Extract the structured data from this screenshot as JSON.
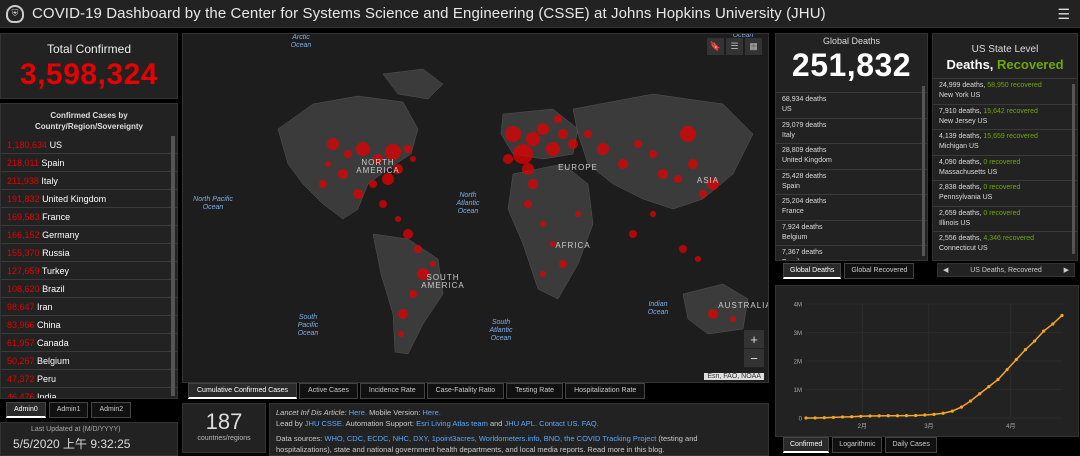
{
  "header": {
    "title": "COVID-19 Dashboard by the Center for Systems Science and Engineering (CSSE) at Johns Hopkins University (JHU)",
    "menu_icon": "hamburger-icon"
  },
  "total": {
    "label": "Total Confirmed",
    "value": "3,598,324"
  },
  "countries": {
    "heading": "Confirmed Cases by Country/Region/Sovereignty",
    "rows": [
      {
        "value": "1,180,634",
        "name": "US"
      },
      {
        "value": "218,011",
        "name": "Spain"
      },
      {
        "value": "211,938",
        "name": "Italy"
      },
      {
        "value": "191,832",
        "name": "United Kingdom"
      },
      {
        "value": "169,583",
        "name": "France"
      },
      {
        "value": "166,152",
        "name": "Germany"
      },
      {
        "value": "155,370",
        "name": "Russia"
      },
      {
        "value": "127,659",
        "name": "Turkey"
      },
      {
        "value": "108,620",
        "name": "Brazil"
      },
      {
        "value": "98,647",
        "name": "Iran"
      },
      {
        "value": "83,966",
        "name": "China"
      },
      {
        "value": "61,957",
        "name": "Canada"
      },
      {
        "value": "50,267",
        "name": "Belgium"
      },
      {
        "value": "47,372",
        "name": "Peru"
      },
      {
        "value": "46,476",
        "name": "India"
      }
    ]
  },
  "admin_tabs": [
    "Admin0",
    "Admin1",
    "Admin2"
  ],
  "last_updated": {
    "label": "Last Updated at (M/D/YYYY)",
    "value": "5/5/2020 上午 9:32:25"
  },
  "map": {
    "labels": [
      {
        "text": "Arctic Ocean",
        "kind": "ocean"
      },
      {
        "text": "NORTH AMERICA",
        "kind": "continent"
      },
      {
        "text": "North Pacific Ocean",
        "kind": "ocean"
      },
      {
        "text": "North Atlantic Ocean",
        "kind": "ocean"
      },
      {
        "text": "EUROPE",
        "kind": "continent"
      },
      {
        "text": "ASIA",
        "kind": "continent"
      },
      {
        "text": "AFRICA",
        "kind": "continent"
      },
      {
        "text": "SOUTH AMERICA",
        "kind": "continent"
      },
      {
        "text": "South Pacific Ocean",
        "kind": "ocean"
      },
      {
        "text": "South Atlantic Ocean",
        "kind": "ocean"
      },
      {
        "text": "Indian Ocean",
        "kind": "ocean"
      },
      {
        "text": "AUSTRALIA",
        "kind": "continent"
      },
      {
        "text": "Ocean",
        "kind": "ocean"
      }
    ],
    "attribution": "Esri, FAO, NOAA",
    "tools": [
      "bookmark-icon",
      "list-icon",
      "grid-icon"
    ]
  },
  "map_tabs": [
    "Cumulative Confirmed Cases",
    "Active Cases",
    "Incidence Rate",
    "Case-Fatality Ratio",
    "Testing Rate",
    "Hospitalization Rate"
  ],
  "countries_count": {
    "value": "187",
    "label": "countries/regions"
  },
  "info": {
    "line1_a": "Lancet Inf Dis Article:",
    "line1_b": "Here.",
    "line1_c": "Mobile Version:",
    "line1_d": "Here.",
    "line2_a": "Lead by",
    "line2_b": "JHU CSSE.",
    "line2_c": "Automation Support:",
    "line2_d": "Esri Living Atlas team",
    "line2_e": "and",
    "line2_f": "JHU APL.",
    "line2_g": "Contact US.",
    "line2_h": "FAQ.",
    "line3_a": "Data sources:",
    "line3_b": "WHO, CDC, ECDC, NHC, DXY, 1point3acres, Worldometers.info, BNO, the COVID Tracking Project",
    "line3_c": "(testing and",
    "line4": "hospitalizations), state and national government health departments, and local media reports. Read more in this blog."
  },
  "global_deaths": {
    "label": "Global Deaths",
    "value": "251,832",
    "rows": [
      {
        "value": "68,934 deaths",
        "name": "US"
      },
      {
        "value": "29,079 deaths",
        "name": "Italy"
      },
      {
        "value": "28,809 deaths",
        "name": "United Kingdom"
      },
      {
        "value": "25,428 deaths",
        "name": "Spain"
      },
      {
        "value": "25,204 deaths",
        "name": "France"
      },
      {
        "value": "7,924 deaths",
        "name": "Belgium"
      },
      {
        "value": "7,367 deaths",
        "name": "Brazil"
      }
    ]
  },
  "death_tabs": [
    "Global Deaths",
    "Global Recovered"
  ],
  "us_state": {
    "label": "US State Level",
    "deaths_word": "Deaths,",
    "recovered_word": "Recovered",
    "rows": [
      {
        "deaths": "24,999 deaths,",
        "recovered": "58,950 recovered",
        "name": "New York US"
      },
      {
        "deaths": "7,910 deaths,",
        "recovered": "15,642 recovered",
        "name": "New Jersey US"
      },
      {
        "deaths": "4,139 deaths,",
        "recovered": "15,659 recovered",
        "name": "Michigan US"
      },
      {
        "deaths": "4,090 deaths,",
        "recovered": "0 recovered",
        "name": "Massachusetts US"
      },
      {
        "deaths": "2,838 deaths,",
        "recovered": "0 recovered",
        "name": "Pennsylvania US"
      },
      {
        "deaths": "2,659 deaths,",
        "recovered": "0 recovered",
        "name": "Illinois US"
      },
      {
        "deaths": "2,556 deaths,",
        "recovered": "4,346 recovered",
        "name": "Connecticut US"
      }
    ],
    "nav_label": "US Deaths, Recovered"
  },
  "chart_tabs": [
    "Confirmed",
    "Logarithmic",
    "Daily Cases"
  ],
  "chart_data": {
    "type": "line",
    "title": "",
    "xlabel": "",
    "ylabel": "",
    "x_ticks": [
      "2月",
      "3月",
      "4月"
    ],
    "y_ticks": [
      "0",
      "1M",
      "2M",
      "3M",
      "4M"
    ],
    "ylim": [
      0,
      4000000
    ],
    "color": "#f5a623",
    "series": [
      {
        "values": [
          600,
          2000,
          9900,
          20000,
          37000,
          45000,
          60000,
          71000,
          75000,
          79000,
          80000,
          83000,
          88000,
          105000,
          128000,
          167000,
          242000,
          382000,
          596000,
          850000,
          1100000,
          1350000,
          1700000,
          2050000,
          2400000,
          2700000,
          3050000,
          3300000,
          3598324
        ]
      }
    ]
  },
  "colors": {
    "red": "#e60000",
    "green": "#70a800",
    "accent": "#f5a623"
  }
}
